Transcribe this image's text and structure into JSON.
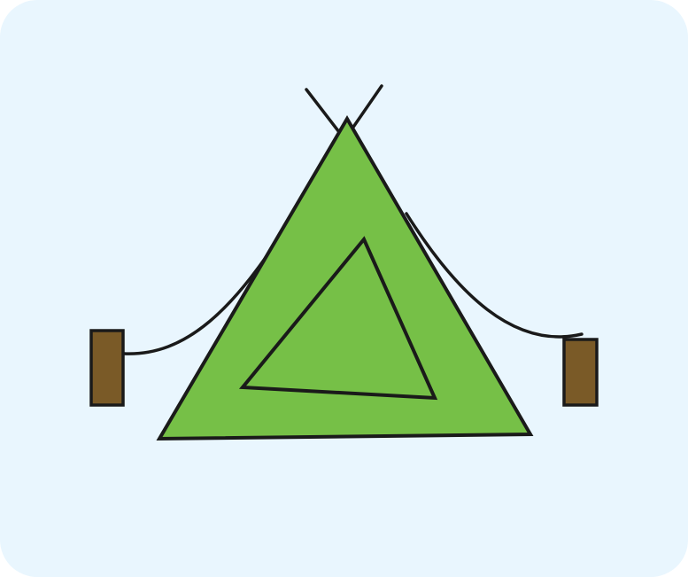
{
  "colors": {
    "background": "#E9F6FE",
    "tent_fill": "#76C047",
    "outline": "#1A1A1A",
    "stake_fill": "#7A5A27"
  },
  "icons": {
    "tent": "tent-icon",
    "stake": "stake-icon",
    "rope": "rope",
    "pole": "tent-pole"
  }
}
